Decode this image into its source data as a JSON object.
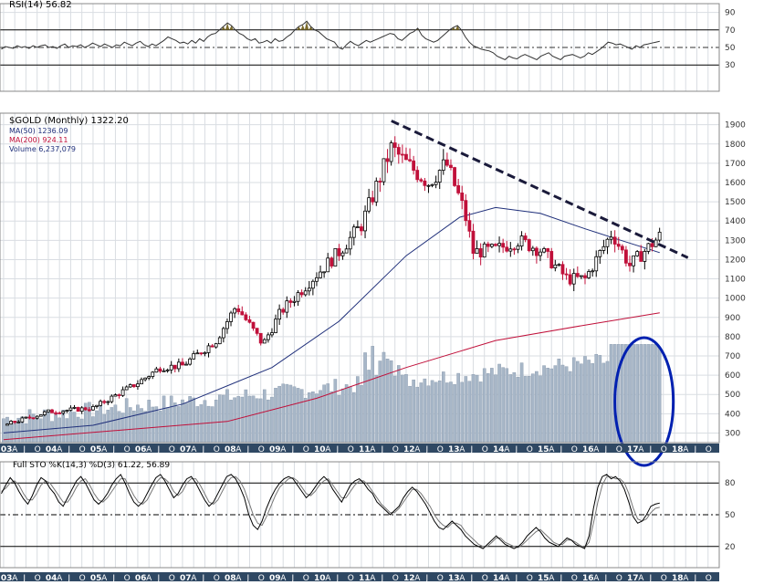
{
  "rsi_panel": {
    "title": "RSI(14) 56.82",
    "levels": [
      90,
      70,
      50,
      30
    ],
    "series": [
      48,
      51,
      50,
      49,
      52,
      50,
      51,
      49,
      52,
      50,
      52,
      53,
      50,
      51,
      49,
      52,
      54,
      50,
      52,
      51,
      53,
      50,
      52,
      55,
      53,
      51,
      54,
      52,
      50,
      53,
      52,
      56,
      54,
      52,
      55,
      57,
      53,
      51,
      54,
      52,
      55,
      58,
      62,
      60,
      58,
      55,
      56,
      54,
      58,
      55,
      60,
      57,
      62,
      65,
      66,
      70,
      74,
      78,
      75,
      70,
      66,
      64,
      60,
      58,
      60,
      55,
      56,
      58,
      55,
      60,
      57,
      58,
      62,
      65,
      70,
      74,
      76,
      80,
      74,
      70,
      68,
      64,
      60,
      58,
      56,
      50,
      48,
      53,
      57,
      54,
      52,
      55,
      58,
      56,
      58,
      60,
      62,
      64,
      66,
      65,
      60,
      58,
      62,
      66,
      68,
      72,
      64,
      60,
      58,
      56,
      58,
      62,
      66,
      70,
      73,
      75,
      70,
      62,
      56,
      52,
      50,
      48,
      47,
      46,
      44,
      40,
      38,
      36,
      40,
      38,
      37,
      40,
      42,
      40,
      38,
      36,
      40,
      42,
      44,
      40,
      38,
      36,
      40,
      41,
      42,
      40,
      38,
      40,
      44,
      42,
      45,
      48,
      52,
      56,
      55,
      53,
      54,
      52,
      50,
      48,
      52,
      50,
      53,
      54,
      55,
      56,
      57
    ]
  },
  "stoch_panel": {
    "title": "Full STO %K(14,3) %D(3) 61.22, 56.89",
    "levels": [
      80,
      50,
      20
    ],
    "k": [
      70,
      78,
      85,
      80,
      72,
      65,
      60,
      68,
      78,
      85,
      82,
      75,
      70,
      62,
      58,
      66,
      74,
      82,
      86,
      80,
      72,
      64,
      60,
      64,
      70,
      78,
      84,
      88,
      80,
      70,
      62,
      58,
      62,
      70,
      78,
      85,
      88,
      82,
      74,
      66,
      70,
      78,
      84,
      86,
      80,
      72,
      64,
      58,
      62,
      70,
      78,
      86,
      88,
      84,
      76,
      66,
      50,
      40,
      36,
      44,
      56,
      66,
      74,
      80,
      84,
      86,
      84,
      78,
      72,
      66,
      70,
      76,
      82,
      86,
      82,
      74,
      68,
      62,
      70,
      78,
      82,
      84,
      80,
      74,
      70,
      62,
      58,
      54,
      50,
      54,
      58,
      66,
      72,
      76,
      72,
      66,
      60,
      52,
      44,
      38,
      36,
      40,
      44,
      40,
      36,
      30,
      26,
      22,
      20,
      18,
      22,
      26,
      30,
      26,
      22,
      20,
      18,
      20,
      24,
      30,
      34,
      38,
      34,
      28,
      24,
      22,
      20,
      24,
      28,
      26,
      22,
      20,
      18,
      30,
      56,
      76,
      86,
      88,
      84,
      86,
      82,
      74,
      62,
      48,
      42,
      44,
      50,
      58,
      60,
      61
    ],
    "d": [
      72,
      75,
      80,
      82,
      78,
      70,
      64,
      64,
      70,
      78,
      82,
      80,
      74,
      68,
      62,
      62,
      68,
      76,
      82,
      84,
      78,
      70,
      64,
      62,
      66,
      72,
      78,
      84,
      84,
      76,
      68,
      62,
      60,
      64,
      72,
      80,
      85,
      84,
      80,
      72,
      68,
      72,
      80,
      84,
      84,
      78,
      70,
      62,
      60,
      64,
      72,
      80,
      85,
      86,
      82,
      74,
      62,
      50,
      42,
      40,
      48,
      58,
      68,
      76,
      80,
      84,
      85,
      82,
      76,
      70,
      68,
      72,
      78,
      82,
      84,
      78,
      72,
      66,
      66,
      72,
      78,
      82,
      82,
      78,
      72,
      66,
      60,
      56,
      52,
      52,
      56,
      62,
      68,
      74,
      74,
      70,
      64,
      58,
      50,
      44,
      40,
      38,
      42,
      42,
      40,
      34,
      30,
      26,
      22,
      20,
      20,
      24,
      28,
      28,
      24,
      22,
      20,
      19,
      22,
      26,
      30,
      34,
      36,
      32,
      28,
      24,
      22,
      22,
      26,
      26,
      24,
      21,
      19,
      24,
      42,
      62,
      78,
      86,
      86,
      84,
      84,
      80,
      70,
      56,
      46,
      44,
      46,
      52,
      56,
      57
    ]
  },
  "chart_data": {
    "type": "candlestick",
    "title": "$GOLD (Monthly) 1322.20",
    "legend": [
      "MA(50) 1236.09",
      "MA(200) 924.11",
      "Volume 6,237,079"
    ],
    "legend_placement": "top-left",
    "y_ticks": [
      300,
      400,
      500,
      600,
      700,
      800,
      900,
      1000,
      1100,
      1200,
      1300,
      1400,
      1500,
      1600,
      1700,
      1800,
      1900
    ],
    "ylim": [
      250,
      1960
    ],
    "x_year_labels": [
      "03",
      "04",
      "05",
      "06",
      "07",
      "08",
      "09",
      "10",
      "11",
      "12",
      "13",
      "14",
      "15",
      "16",
      "17",
      "18"
    ],
    "x_start_year": 2002.92,
    "x_end_year": 2019.0,
    "monthly_close": [
      {
        "t": 2003.0,
        "c": 340
      },
      {
        "t": 2004.0,
        "c": 410
      },
      {
        "t": 2005.0,
        "c": 430
      },
      {
        "t": 2006.0,
        "c": 560
      },
      {
        "t": 2006.5,
        "c": 640
      },
      {
        "t": 2007.0,
        "c": 650
      },
      {
        "t": 2007.75,
        "c": 780
      },
      {
        "t": 2008.2,
        "c": 960
      },
      {
        "t": 2008.8,
        "c": 760
      },
      {
        "t": 2009.2,
        "c": 930
      },
      {
        "t": 2009.9,
        "c": 1100
      },
      {
        "t": 2010.5,
        "c": 1240
      },
      {
        "t": 2011.0,
        "c": 1380
      },
      {
        "t": 2011.67,
        "c": 1780
      },
      {
        "t": 2012.0,
        "c": 1700
      },
      {
        "t": 2012.5,
        "c": 1600
      },
      {
        "t": 2012.9,
        "c": 1700
      },
      {
        "t": 2013.3,
        "c": 1450
      },
      {
        "t": 2013.5,
        "c": 1240
      },
      {
        "t": 2014.0,
        "c": 1250
      },
      {
        "t": 2014.5,
        "c": 1300
      },
      {
        "t": 2015.0,
        "c": 1250
      },
      {
        "t": 2015.6,
        "c": 1100
      },
      {
        "t": 2016.0,
        "c": 1100
      },
      {
        "t": 2016.6,
        "c": 1340
      },
      {
        "t": 2017.0,
        "c": 1170
      },
      {
        "t": 2017.4,
        "c": 1260
      },
      {
        "t": 2017.67,
        "c": 1322
      }
    ],
    "ma50": [
      {
        "t": 2003.0,
        "c": 300
      },
      {
        "t": 2005.0,
        "c": 340
      },
      {
        "t": 2007.0,
        "c": 450
      },
      {
        "t": 2009.0,
        "c": 640
      },
      {
        "t": 2010.5,
        "c": 880
      },
      {
        "t": 2012.0,
        "c": 1220
      },
      {
        "t": 2013.2,
        "c": 1420
      },
      {
        "t": 2014.0,
        "c": 1470
      },
      {
        "t": 2015.0,
        "c": 1440
      },
      {
        "t": 2016.0,
        "c": 1360
      },
      {
        "t": 2016.8,
        "c": 1300
      },
      {
        "t": 2017.67,
        "c": 1236
      }
    ],
    "ma200": [
      {
        "t": 2003.0,
        "c": 265
      },
      {
        "t": 2008.0,
        "c": 360
      },
      {
        "t": 2010.0,
        "c": 480
      },
      {
        "t": 2012.0,
        "c": 640
      },
      {
        "t": 2014.0,
        "c": 780
      },
      {
        "t": 2016.0,
        "c": 860
      },
      {
        "t": 2017.67,
        "c": 924
      }
    ],
    "trendline": [
      {
        "t": 2011.67,
        "c": 1920
      },
      {
        "t": 2018.3,
        "c": 1210
      }
    ],
    "annotation": "circle around 2017 volume bars"
  },
  "colors": {
    "up": "#000000",
    "down": "#c0103a",
    "ma50": "#1f2f7a",
    "ma200": "#c0103a",
    "volume": "#a8b7c8",
    "grid": "#d9dde2",
    "axis_bar": "#2f4863",
    "rsi_fill": "#7a6a2a",
    "circle": "#0020b0"
  }
}
